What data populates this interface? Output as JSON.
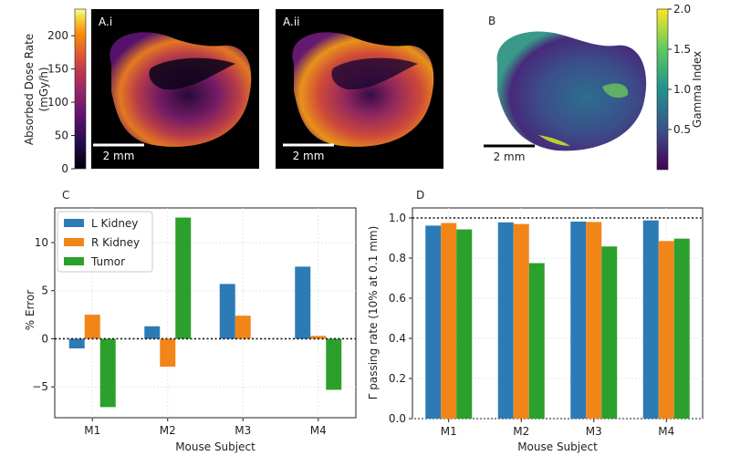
{
  "colors": {
    "l_kidney": "#2c7bb6",
    "r_kidney": "#f28518",
    "tumor": "#2ca02c"
  },
  "chart_data": [
    {
      "panel": "A",
      "type": "heatmap",
      "colorbar": {
        "label_line1": "Absorbed Dose Rate",
        "label_line2": "(mGy/h)",
        "ticks": [
          "0",
          "50",
          "100",
          "150",
          "200"
        ],
        "range": [
          0,
          240
        ],
        "colormap": "inferno"
      },
      "images": [
        {
          "label": "A.i",
          "scalebar": "2 mm"
        },
        {
          "label": "A.ii",
          "scalebar": "2 mm"
        }
      ]
    },
    {
      "panel": "B",
      "type": "heatmap",
      "label": "B",
      "scalebar": "2 mm",
      "colorbar": {
        "label": "Gamma Index",
        "ticks": [
          "0.5",
          "1.0",
          "1.5",
          "2.0"
        ],
        "range": [
          0,
          2.0
        ],
        "colormap": "viridis"
      }
    },
    {
      "panel": "C",
      "type": "bar",
      "label": "C",
      "categories": [
        "M1",
        "M2",
        "M3",
        "M4"
      ],
      "series": [
        {
          "name": "L Kidney",
          "values": [
            -1.0,
            1.3,
            5.7,
            7.5
          ]
        },
        {
          "name": "R Kidney",
          "values": [
            2.5,
            -2.9,
            2.4,
            0.3
          ]
        },
        {
          "name": "Tumor",
          "values": [
            -7.1,
            12.6,
            0,
            -5.3
          ]
        }
      ],
      "xlabel": "Mouse Subject",
      "ylabel": "% Error",
      "ylim": [
        -8.2,
        13.6
      ],
      "yticks": [
        -5,
        0,
        5,
        10
      ],
      "reference_line": 0,
      "legend": "top-left"
    },
    {
      "panel": "D",
      "type": "bar",
      "label": "D",
      "categories": [
        "M1",
        "M2",
        "M3",
        "M4"
      ],
      "series": [
        {
          "name": "L Kidney",
          "values": [
            0.962,
            0.978,
            0.982,
            0.988
          ]
        },
        {
          "name": "R Kidney",
          "values": [
            0.975,
            0.97,
            0.98,
            0.885
          ]
        },
        {
          "name": "Tumor",
          "values": [
            0.943,
            0.775,
            0.858,
            0.897
          ]
        }
      ],
      "xlabel": "Mouse Subject",
      "ylabel": "Γ passing rate (10% at 0.1 mm)",
      "ylim": [
        0,
        1.05
      ],
      "yticks": [
        0.0,
        0.2,
        0.4,
        0.6,
        0.8,
        1.0
      ],
      "reference_line": 1.0
    }
  ]
}
